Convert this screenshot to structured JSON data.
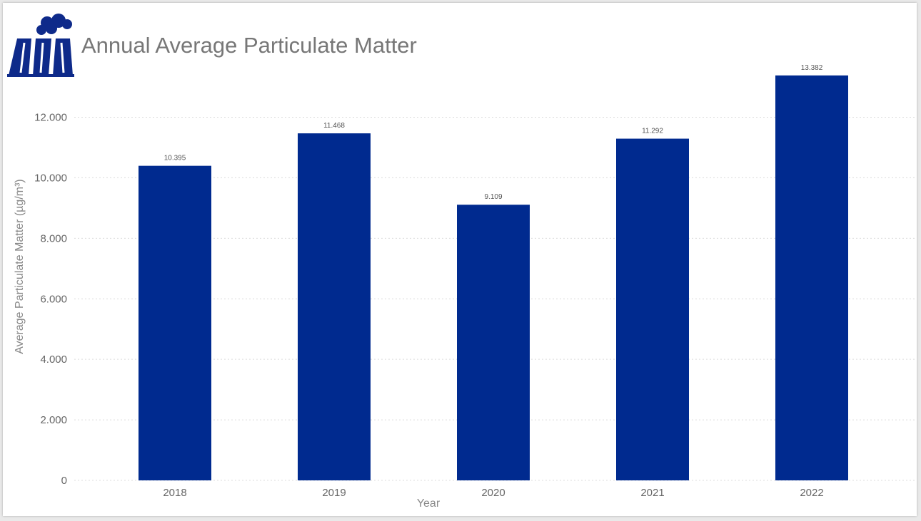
{
  "title": "Annual Average Particulate Matter",
  "logo_icon": "factory-icon",
  "colors": {
    "bar": "#002a8f",
    "grid": "#dcdcdc",
    "logo": "#0e2a8a"
  },
  "chart_data": {
    "type": "bar",
    "title": "Annual Average Particulate Matter",
    "xlabel": "Year",
    "ylabel": "Average Particulate Matter (µg/m³)",
    "categories": [
      "2018",
      "2019",
      "2020",
      "2021",
      "2022"
    ],
    "values": [
      10.395,
      11.468,
      9.109,
      11.292,
      13.382
    ],
    "data_labels": [
      "10.395",
      "11.468",
      "9.109",
      "11.292",
      "13.382"
    ],
    "yticks": [
      0,
      2,
      4,
      6,
      8,
      10,
      12
    ],
    "ytick_labels": [
      "0",
      "2.000",
      "4.000",
      "6.000",
      "8.000",
      "10.000",
      "12.000"
    ],
    "ylim": [
      0,
      14
    ],
    "grid": true,
    "legend": "none"
  }
}
